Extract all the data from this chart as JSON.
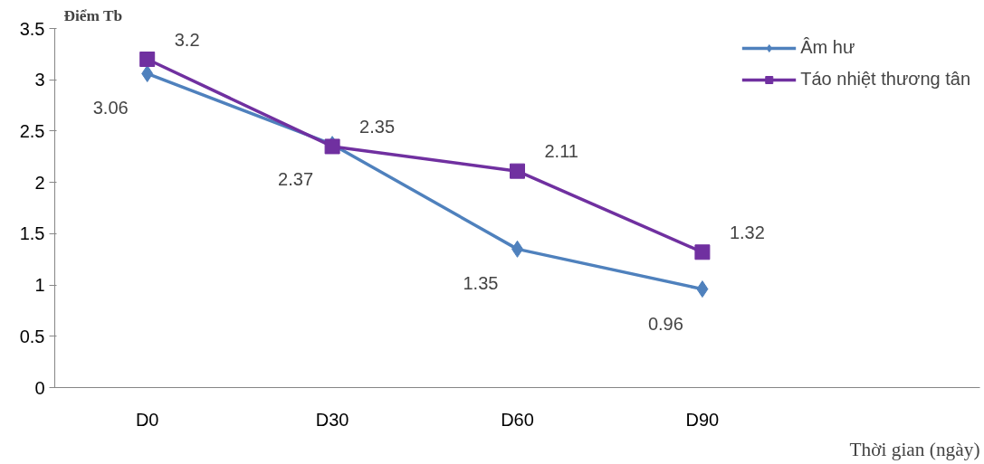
{
  "chart_data": {
    "type": "line",
    "xlabel": "Thời gian (ngày)",
    "ylabel": "Điểm Tb",
    "categories": [
      "D0",
      "D30",
      "D60",
      "D90"
    ],
    "series": [
      {
        "name": "Âm hư",
        "color": "#4f81bd",
        "marker": "diamond",
        "values": [
          3.06,
          2.37,
          1.35,
          0.96
        ]
      },
      {
        "name": "Táo nhiệt thương tân",
        "color": "#7030a0",
        "marker": "square",
        "values": [
          3.2,
          2.35,
          2.11,
          1.32
        ]
      }
    ],
    "ylim": [
      0,
      3.5
    ],
    "yticks": [
      0,
      0.5,
      1,
      1.5,
      2,
      2.5,
      3,
      3.5
    ],
    "grid": false,
    "legend": "top right",
    "data_labels": true,
    "line_style": "solid"
  }
}
